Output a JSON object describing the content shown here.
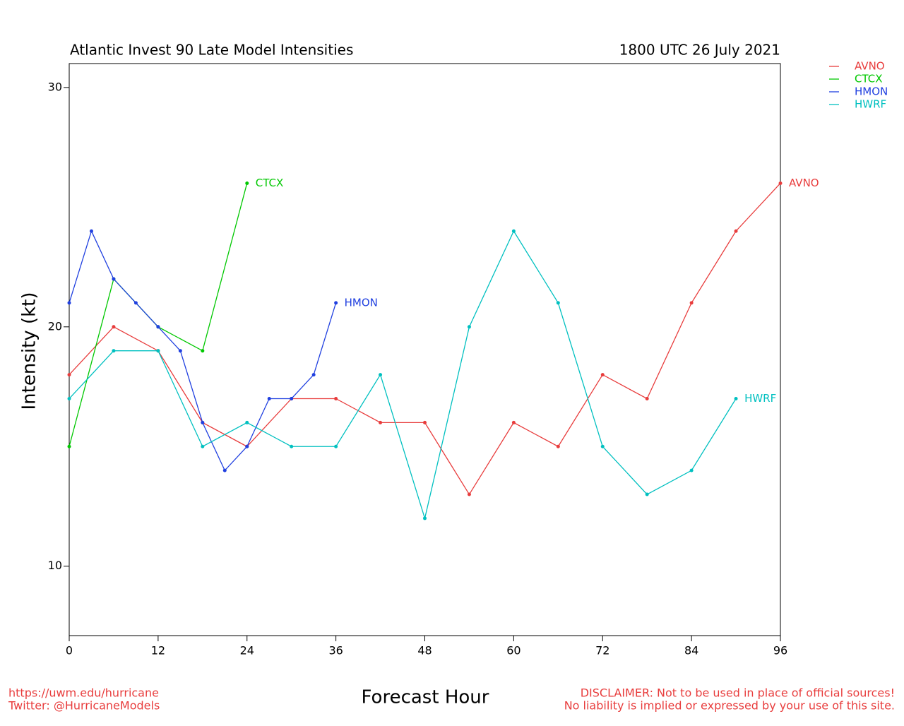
{
  "chart_data": {
    "type": "line",
    "title": "Atlantic Invest 90 Late Model Intensities",
    "subtitle": "1800 UTC 26 July 2021",
    "x_label": "Forecast Hour",
    "y_label": "Intensity (kt)",
    "footer_left": [
      "https://uwm.edu/hurricane",
      "Twitter: @HurricaneModels"
    ],
    "footer_right": [
      "DISCLAIMER: Not to be used in place of official sources!",
      "No liability is implied or expressed by your use of this site."
    ],
    "xlim": [
      0,
      96
    ],
    "xticks": [
      0,
      12,
      24,
      36,
      48,
      60,
      72,
      84,
      96
    ],
    "ylim": [
      7.1,
      31
    ],
    "yticks": [
      10,
      20,
      30
    ],
    "legend": "outside-top-right",
    "series": [
      {
        "name": "AVNO",
        "color": "#e83c3c",
        "x": [
          0,
          6,
          12,
          18,
          24,
          30,
          36,
          42,
          48,
          54,
          60,
          66,
          72,
          78,
          84,
          90,
          96
        ],
        "values": [
          18,
          20,
          19,
          16,
          15,
          17,
          17,
          16,
          16,
          13,
          16,
          15,
          18,
          17,
          21,
          24,
          26
        ]
      },
      {
        "name": "CTCX",
        "color": "#00c800",
        "x": [
          0,
          6,
          12,
          18,
          24
        ],
        "values": [
          15,
          22,
          20,
          19,
          26
        ]
      },
      {
        "name": "HMON",
        "color": "#2040e0",
        "x": [
          0,
          3,
          6,
          9,
          12,
          15,
          18,
          21,
          24,
          27,
          30,
          33,
          36
        ],
        "values": [
          21,
          24,
          22,
          21,
          20,
          19,
          16,
          14,
          15,
          17,
          17,
          18,
          21
        ]
      },
      {
        "name": "HWRF",
        "color": "#00c0c0",
        "x": [
          0,
          6,
          12,
          18,
          24,
          30,
          36,
          42,
          48,
          54,
          60,
          66,
          72,
          78,
          84,
          90
        ],
        "values": [
          17,
          19,
          19,
          15,
          16,
          15,
          15,
          18,
          12,
          20,
          24,
          21,
          15,
          13,
          14,
          17
        ]
      }
    ]
  }
}
